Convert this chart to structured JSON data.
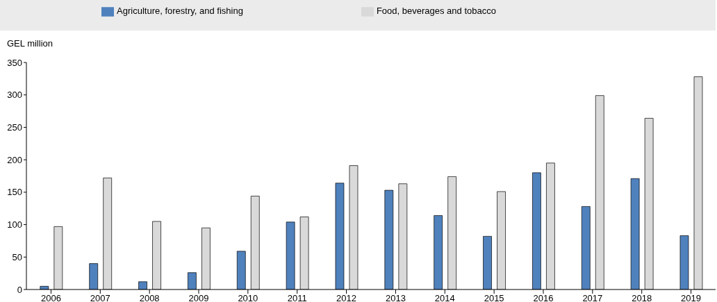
{
  "chart_data": {
    "type": "bar",
    "ylabel": "GEL million",
    "categories": [
      "2006",
      "2007",
      "2008",
      "2009",
      "2010",
      "2011",
      "2012",
      "2013",
      "2014",
      "2015",
      "2016",
      "2017",
      "2018",
      "2019"
    ],
    "series": [
      {
        "name": "Agriculture, forestry, and fishing",
        "color": "#4f81bd",
        "values": [
          5,
          40,
          12,
          26,
          59,
          104,
          164,
          153,
          114,
          82,
          180,
          128,
          171,
          83
        ]
      },
      {
        "name": "Food, beverages and tobacco",
        "color": "#d9d9d9",
        "values": [
          97,
          172,
          105,
          95,
          144,
          112,
          191,
          163,
          174,
          151,
          195,
          299,
          264,
          328
        ]
      }
    ],
    "ylim": [
      0,
      350
    ],
    "yticks": [
      0,
      50,
      100,
      150,
      200,
      250,
      300,
      350
    ],
    "grid": false,
    "legend": "top"
  }
}
